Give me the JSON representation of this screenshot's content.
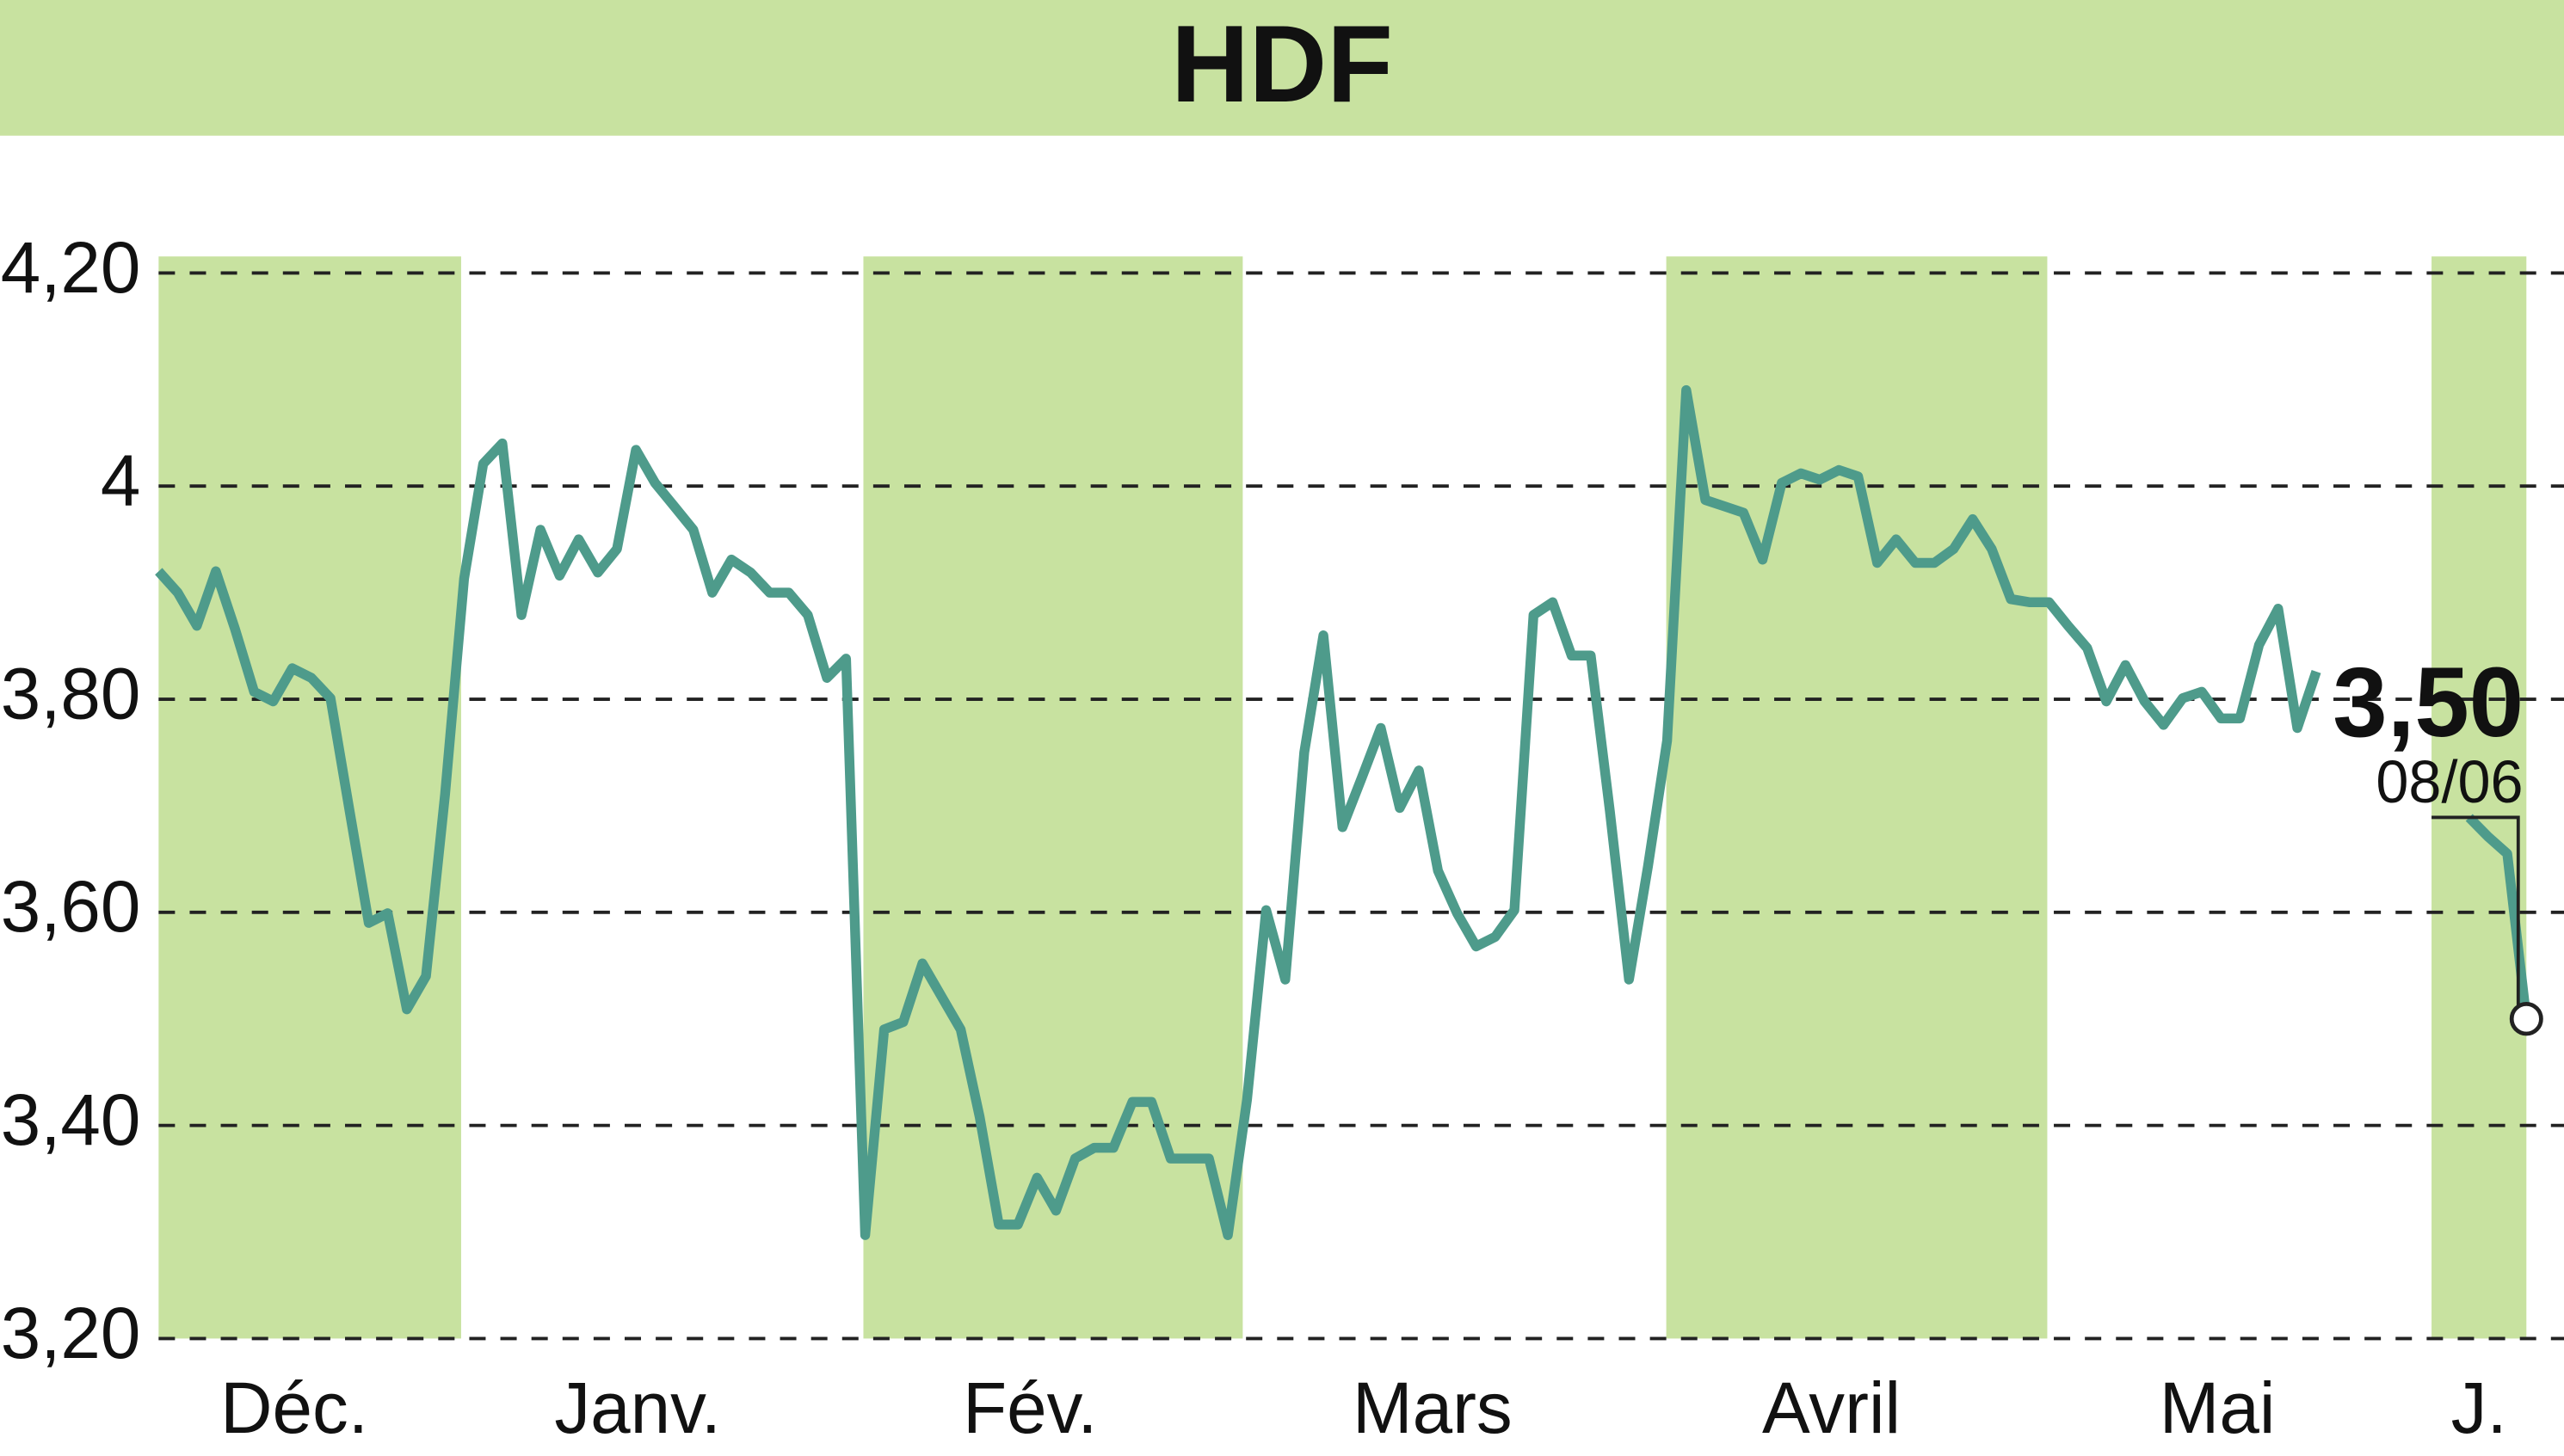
{
  "chart_data": {
    "type": "line",
    "title": "HDF",
    "x_labels": [
      "Déc.",
      "Janv.",
      "Fév.",
      "Mars",
      "Avril",
      "Mai",
      "J."
    ],
    "color": "#4e9b8b",
    "band_color": "#c8e2a0",
    "values": [
      3.92,
      3.9,
      3.869,
      3.92,
      3.866,
      3.807,
      3.798,
      3.829,
      3.82,
      3.801,
      3.695,
      3.59,
      3.599,
      3.509,
      3.54,
      3.711,
      3.913,
      4.021,
      4.04,
      3.879,
      3.959,
      3.916,
      3.95,
      3.919,
      3.941,
      4.034,
      4.003,
      3.981,
      3.959,
      3.9,
      3.931,
      3.919,
      3.9,
      3.9,
      3.879,
      3.82,
      3.838,
      3.297,
      3.49,
      3.497,
      3.552,
      3.521,
      3.49,
      3.408,
      3.307,
      3.307,
      3.351,
      3.32,
      3.369,
      3.379,
      3.379,
      3.422,
      3.422,
      3.369,
      3.369,
      3.369,
      3.297,
      3.424,
      3.602,
      3.537,
      3.75,
      3.86,
      3.68,
      3.726,
      3.773,
      3.698,
      3.733,
      3.639,
      3.599,
      3.568,
      3.577,
      3.602,
      3.879,
      3.891,
      3.841,
      3.841,
      3.695,
      3.537,
      3.643,
      3.761,
      4.09,
      3.987,
      3.981,
      3.975,
      3.931,
      4.003,
      4.012,
      4.006,
      4.015,
      4.009,
      3.928,
      3.95,
      3.928,
      3.928,
      3.941,
      3.969,
      3.941,
      3.894,
      3.891,
      3.891,
      3.869,
      3.848,
      3.798,
      3.832,
      3.798,
      3.776,
      3.801,
      3.807,
      3.782,
      3.782,
      3.851,
      3.885,
      3.773,
      3.826,
      null,
      null,
      null,
      null,
      null,
      null,
      null,
      3.689,
      3.671,
      3.655,
      3.5
    ],
    "annotation": {
      "text": "3,50",
      "date": "08/06"
    },
    "ylim": [
      3.2,
      4.2
    ],
    "yticks": [
      {
        "value": 4.2,
        "label": "4,20"
      },
      4,
      {
        "value": 3.8,
        "label": "3,80"
      },
      {
        "value": 3.6,
        "label": "3,60"
      },
      {
        "value": 3.4,
        "label": "3,40"
      },
      {
        "value": 3.2,
        "label": "3,20"
      }
    ],
    "grid": true
  }
}
